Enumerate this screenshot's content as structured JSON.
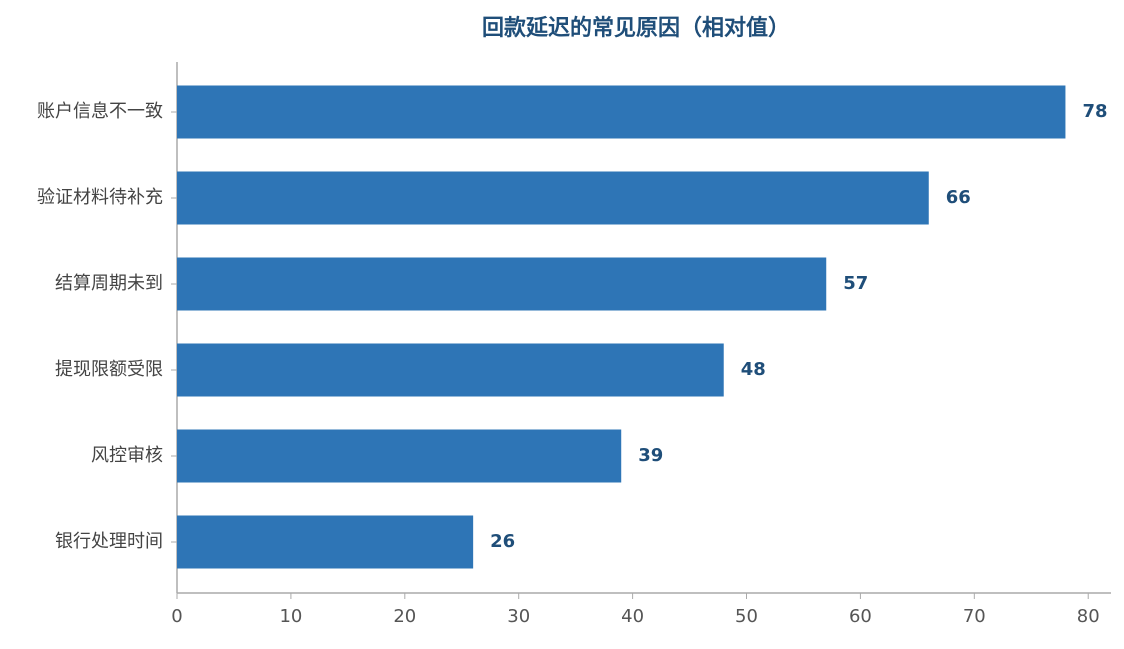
{
  "chart_data": {
    "type": "hbar",
    "title": "回款延迟的常见原因（相对值）",
    "categories": [
      "账户信息不一致",
      "验证材料待补充",
      "结算周期未到",
      "提现限额受限",
      "风控审核",
      "银行处理时间"
    ],
    "values": [
      78,
      66,
      57,
      48,
      39,
      26
    ],
    "color": "#2e75b6",
    "xlim": [
      0,
      82
    ],
    "xticks": [
      0,
      10,
      20,
      30,
      40,
      50,
      60,
      70,
      80
    ],
    "grid": false
  }
}
